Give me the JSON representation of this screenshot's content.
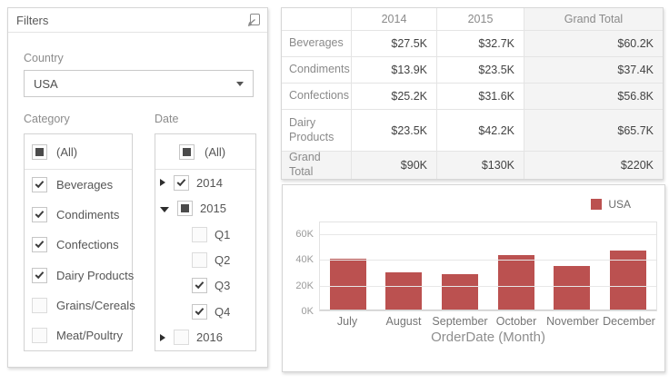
{
  "colors": {
    "accent_bar": "#bb5150",
    "check_mark": "#3c3c3c"
  },
  "filters_panel": {
    "title": "Filters",
    "export_icon": "export-icon",
    "country": {
      "label": "Country",
      "value": "USA"
    },
    "category": {
      "label": "Category",
      "all_item": {
        "label": "(All)",
        "state": "indeterminate"
      },
      "items": [
        {
          "label": "Beverages",
          "state": "checked"
        },
        {
          "label": "Condiments",
          "state": "checked"
        },
        {
          "label": "Confections",
          "state": "checked"
        },
        {
          "label": "Dairy Products",
          "state": "checked"
        },
        {
          "label": "Grains/Cereals",
          "state": "unchecked"
        },
        {
          "label": "Meat/Poultry",
          "state": "unchecked"
        }
      ]
    },
    "date": {
      "label": "Date",
      "all_item": {
        "label": "(All)",
        "state": "indeterminate"
      },
      "items": [
        {
          "label": "2014",
          "state": "checked",
          "expander": "collapsed",
          "level": 0
        },
        {
          "label": "2015",
          "state": "indeterminate",
          "expander": "expanded",
          "level": 0
        },
        {
          "label": "Q1",
          "state": "unchecked",
          "expander": "none",
          "level": 1
        },
        {
          "label": "Q2",
          "state": "unchecked",
          "expander": "none",
          "level": 1
        },
        {
          "label": "Q3",
          "state": "checked",
          "expander": "none",
          "level": 1
        },
        {
          "label": "Q4",
          "state": "checked",
          "expander": "none",
          "level": 1
        },
        {
          "label": "2016",
          "state": "unchecked",
          "expander": "collapsed",
          "level": 0
        }
      ]
    }
  },
  "pivot_table": {
    "columns": [
      "",
      "2014",
      "2015",
      "Grand Total"
    ],
    "rows": [
      {
        "label": "Beverages",
        "values": [
          "$27.5K",
          "$32.7K",
          "$60.2K"
        ],
        "is_total": false
      },
      {
        "label": "Condiments",
        "values": [
          "$13.9K",
          "$23.5K",
          "$37.4K"
        ],
        "is_total": false
      },
      {
        "label": "Confections",
        "values": [
          "$25.2K",
          "$31.6K",
          "$56.8K"
        ],
        "is_total": false
      },
      {
        "label": "Dairy Products",
        "values": [
          "$23.5K",
          "$42.2K",
          "$65.7K"
        ],
        "is_total": false
      },
      {
        "label": "Grand Total",
        "values": [
          "$90K",
          "$130K",
          "$220K"
        ],
        "is_total": true
      }
    ]
  },
  "chart_data": {
    "type": "bar",
    "title": "",
    "categories": [
      "July",
      "August",
      "September",
      "October",
      "November",
      "December"
    ],
    "series": [
      {
        "name": "USA",
        "color": "#bb5150",
        "values": [
          40000,
          30000,
          28000,
          43000,
          35000,
          47000
        ]
      }
    ],
    "xlabel": "OrderDate (Month)",
    "ylabel": "",
    "y_ticks": [
      "0K",
      "20K",
      "40K",
      "60K"
    ],
    "y_tick_values": [
      0,
      20000,
      40000,
      60000
    ],
    "ylim": [
      0,
      70000
    ],
    "legend_position": "top-right",
    "grid": true
  }
}
